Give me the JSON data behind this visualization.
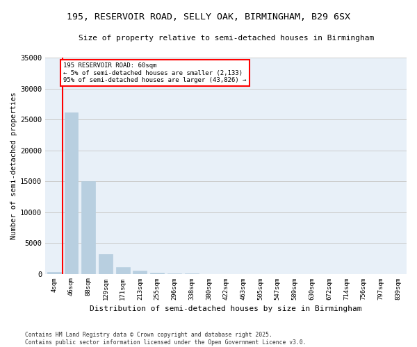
{
  "title1": "195, RESERVOIR ROAD, SELLY OAK, BIRMINGHAM, B29 6SX",
  "title2": "Size of property relative to semi-detached houses in Birmingham",
  "xlabel": "Distribution of semi-detached houses by size in Birmingham",
  "ylabel": "Number of semi-detached properties",
  "categories": [
    "4sqm",
    "46sqm",
    "88sqm",
    "129sqm",
    "171sqm",
    "213sqm",
    "255sqm",
    "296sqm",
    "338sqm",
    "380sqm",
    "422sqm",
    "463sqm",
    "505sqm",
    "547sqm",
    "589sqm",
    "630sqm",
    "672sqm",
    "714sqm",
    "756sqm",
    "797sqm",
    "839sqm"
  ],
  "values": [
    300,
    26100,
    15000,
    3200,
    1100,
    480,
    150,
    50,
    15,
    5,
    3,
    2,
    1,
    1,
    0,
    0,
    0,
    0,
    0,
    0,
    0
  ],
  "bar_color": "#b8cfe0",
  "bar_edge_color": "#b8cfe0",
  "grid_color": "#cccccc",
  "bg_color": "#e8f0f8",
  "vline_x": 0.5,
  "vline_color": "red",
  "annotation_title": "195 RESERVOIR ROAD: 60sqm",
  "annotation_line1": "← 5% of semi-detached houses are smaller (2,133)",
  "annotation_line2": "95% of semi-detached houses are larger (43,826) →",
  "ylim": [
    0,
    35000
  ],
  "yticks": [
    0,
    5000,
    10000,
    15000,
    20000,
    25000,
    30000,
    35000
  ],
  "footnote1": "Contains HM Land Registry data © Crown copyright and database right 2025.",
  "footnote2": "Contains public sector information licensed under the Open Government Licence v3.0."
}
